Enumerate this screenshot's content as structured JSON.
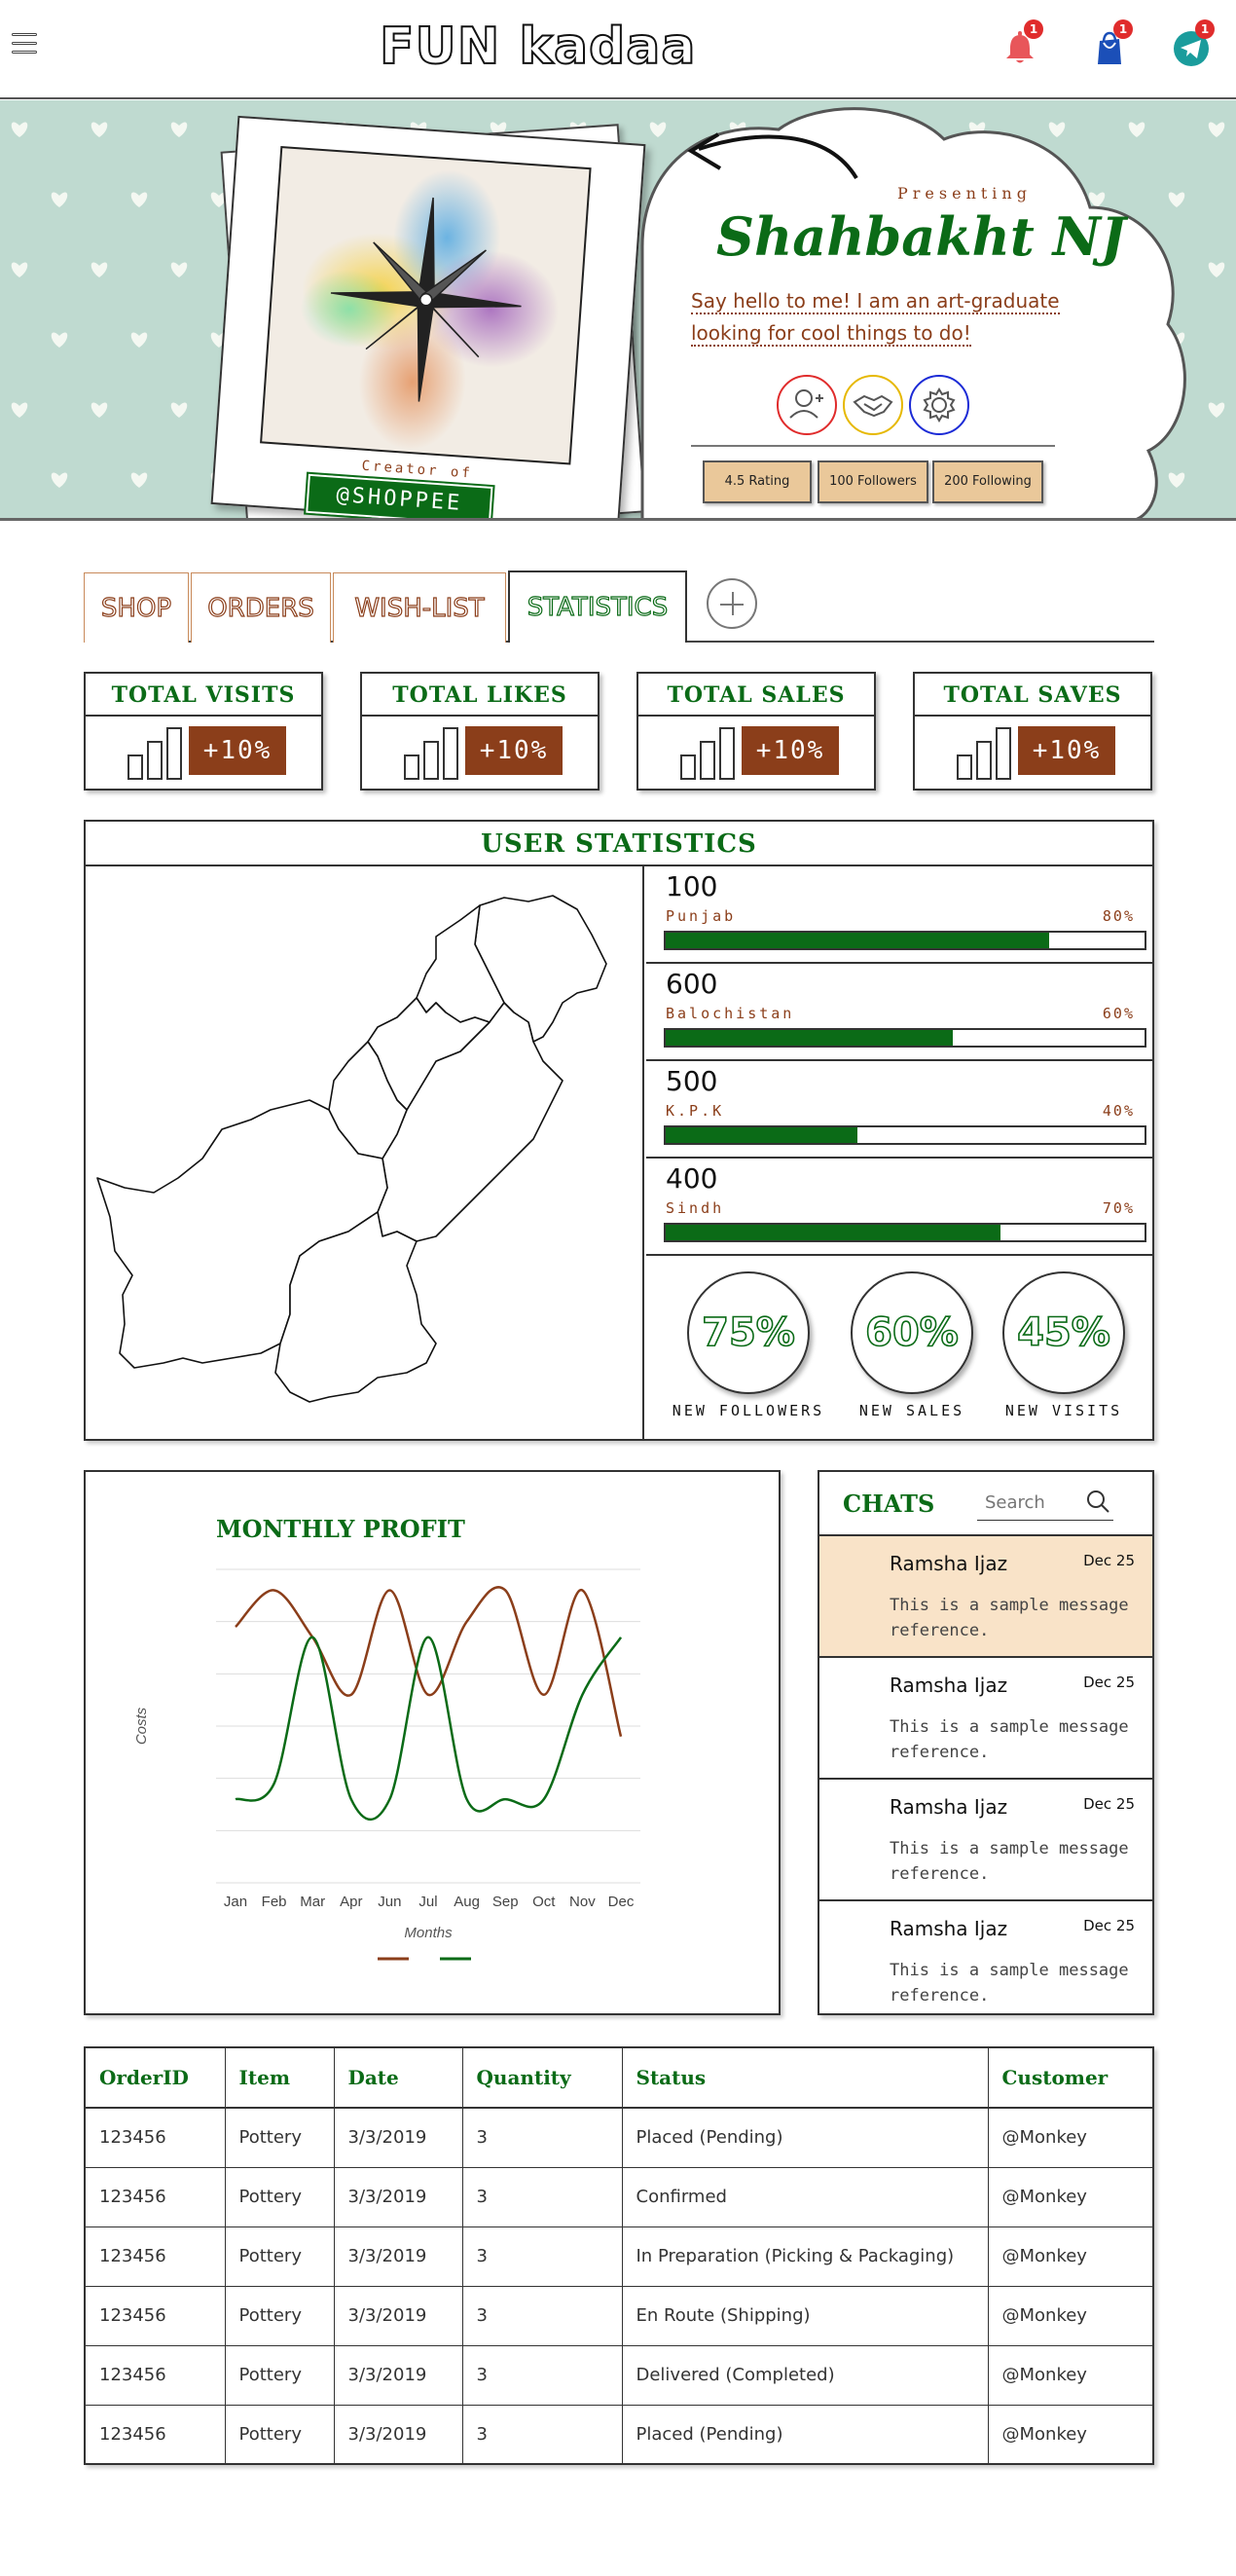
{
  "header": {
    "logo": "FUN kadaa",
    "notifications": {
      "icon": "bell-icon",
      "count": "1"
    },
    "cart": {
      "icon": "shopping-bag-icon",
      "count": "1"
    },
    "messages": {
      "icon": "telegram-icon",
      "count": "1"
    }
  },
  "profile": {
    "creator_label": "Creator of",
    "handle": "@SHOPPEE",
    "presenting": "Presenting",
    "name": "Shahbakht NJ",
    "bio": "Say hello to me! I am an art-graduate looking for cool things to do!",
    "actions": [
      {
        "icon": "add-user-icon",
        "color": "#e02c2c"
      },
      {
        "icon": "handshake-icon",
        "color": "#e6b800"
      },
      {
        "icon": "gear-icon",
        "color": "#1c2bd6"
      }
    ],
    "stats": [
      "4.5 Rating",
      "100 Followers",
      "200 Following"
    ]
  },
  "tabs": [
    {
      "label": "SHOP",
      "active": false
    },
    {
      "label": "ORDERS",
      "active": false
    },
    {
      "label": "WISH-LIST",
      "active": false
    },
    {
      "label": "STATISTICS",
      "active": true
    }
  ],
  "kpis": [
    {
      "title": "TOTAL VISITS",
      "change": "+10%"
    },
    {
      "title": "TOTAL LIKES",
      "change": "+10%"
    },
    {
      "title": "TOTAL SALES",
      "change": "+10%"
    },
    {
      "title": "TOTAL SAVES",
      "change": "+10%"
    }
  ],
  "user_statistics": {
    "title": "USER STATISTICS",
    "regions": [
      {
        "value": "100",
        "name": "Punjab",
        "percent": "80%",
        "fraction": 0.8
      },
      {
        "value": "600",
        "name": "Balochistan",
        "percent": "60%",
        "fraction": 0.6
      },
      {
        "value": "500",
        "name": "K.P.K",
        "percent": "40%",
        "fraction": 0.4
      },
      {
        "value": "400",
        "name": "Sindh",
        "percent": "70%",
        "fraction": 0.7
      }
    ],
    "rings": [
      {
        "value": "75%",
        "label": "NEW FOLLOWERS"
      },
      {
        "value": "60%",
        "label": "NEW SALES"
      },
      {
        "value": "45%",
        "label": "NEW VISITS"
      }
    ]
  },
  "chart_data": {
    "type": "line",
    "title": "MONTHLY PROFIT",
    "xlabel": "Months",
    "ylabel": "Costs",
    "categories": [
      "Jan",
      "Feb",
      "Mar",
      "Apr",
      "Jun",
      "Jul",
      "Aug",
      "Sep",
      "Oct",
      "Nov",
      "Dec"
    ],
    "ylim": [
      0,
      6
    ],
    "grid": true,
    "legend": "bottom",
    "series": [
      {
        "color": "#8b3e1a",
        "values": [
          4.9,
          5.6,
          4.7,
          3.6,
          5.6,
          3.6,
          5.0,
          5.6,
          3.6,
          5.6,
          2.8
        ]
      },
      {
        "color": "#0b6b17",
        "values": [
          1.6,
          1.9,
          4.7,
          1.6,
          1.6,
          4.7,
          1.6,
          1.6,
          1.6,
          3.6,
          4.7
        ]
      }
    ]
  },
  "chats": {
    "title": "CHATS",
    "search_placeholder": "Search",
    "items": [
      {
        "name": "Ramsha Ijaz",
        "date": "Dec 25",
        "message": "This is a sample message reference.",
        "active": true
      },
      {
        "name": "Ramsha Ijaz",
        "date": "Dec 25",
        "message": "This is a sample message reference.",
        "active": false
      },
      {
        "name": "Ramsha Ijaz",
        "date": "Dec 25",
        "message": "This is a sample message reference.",
        "active": false
      },
      {
        "name": "Ramsha Ijaz",
        "date": "Dec 25",
        "message": "This is a sample message reference.",
        "active": false
      }
    ]
  },
  "orders": {
    "columns": [
      "OrderID",
      "Item",
      "Date",
      "Quantity",
      "Status",
      "Customer"
    ],
    "rows": [
      [
        "123456",
        "Pottery",
        "3/3/2019",
        "3",
        "Placed (Pending)",
        "@Monkey"
      ],
      [
        "123456",
        "Pottery",
        "3/3/2019",
        "3",
        "Confirmed",
        "@Monkey"
      ],
      [
        "123456",
        "Pottery",
        "3/3/2019",
        "3",
        "In Preparation (Picking & Packaging)",
        "@Monkey"
      ],
      [
        "123456",
        "Pottery",
        "3/3/2019",
        "3",
        "En Route (Shipping)",
        "@Monkey"
      ],
      [
        "123456",
        "Pottery",
        "3/3/2019",
        "3",
        "Delivered (Completed)",
        "@Monkey"
      ],
      [
        "123456",
        "Pottery",
        "3/3/2019",
        "3",
        "Placed (Pending)",
        "@Monkey"
      ]
    ]
  }
}
